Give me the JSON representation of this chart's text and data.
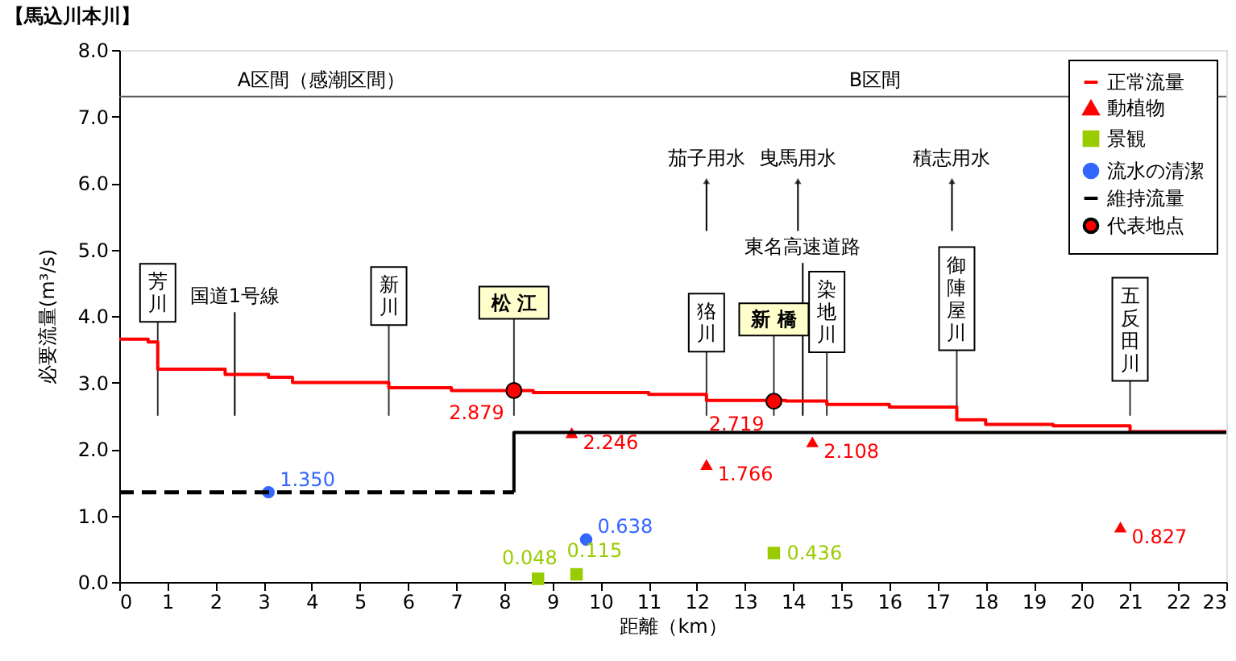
{
  "chart_data": {
    "type": "scatter",
    "title": "【馬込川本川】",
    "xlabel": "距離（km）",
    "ylabel": "必要流量(m³/s)",
    "xlim": [
      0,
      23
    ],
    "xticks": [
      0,
      1,
      2,
      3,
      4,
      5,
      6,
      7,
      8,
      9,
      10,
      11,
      12,
      13,
      14,
      15,
      16,
      17,
      18,
      19,
      20,
      21,
      22,
      23
    ],
    "ylim": [
      0,
      8
    ],
    "yticks": [
      {
        "value": 0,
        "label": "0.0"
      },
      {
        "value": 1,
        "label": "1.0"
      },
      {
        "value": 2,
        "label": "2.0"
      },
      {
        "value": 3,
        "label": "3.0"
      },
      {
        "value": 4,
        "label": "4.0"
      },
      {
        "value": 5,
        "label": "5.0"
      },
      {
        "value": 6,
        "label": "6.0"
      },
      {
        "value": 7,
        "label": "7.0"
      },
      {
        "value": 8,
        "label": "8.0"
      }
    ],
    "legend": "top right",
    "series": [
      {
        "name": "正常流量",
        "type": "step",
        "line_style": "solid",
        "color": "#ff0000",
        "x": [
          0,
          0.6,
          0.8,
          2.2,
          3.1,
          3.6,
          5.6,
          6.9,
          8.6,
          11,
          12.2,
          13.85,
          14.7,
          16,
          17.4,
          18,
          19.4,
          21,
          23
        ],
        "values": [
          3.65,
          3.61,
          3.2,
          3.12,
          3.08,
          3.0,
          2.92,
          2.88,
          2.85,
          2.82,
          2.73,
          2.72,
          2.67,
          2.63,
          2.44,
          2.37,
          2.35,
          2.26,
          2.26
        ]
      },
      {
        "name": "動植物",
        "marker": "triangle",
        "color": "#ff0000",
        "x": [
          9.4,
          12.2,
          14.4,
          20.8
        ],
        "values": [
          2.246,
          1.766,
          2.108,
          0.827
        ],
        "value_labels": [
          "2.246",
          "1.766",
          "2.108",
          "0.827"
        ]
      },
      {
        "name": "景観",
        "marker": "square",
        "color": "#99cc00",
        "x": [
          8.7,
          9.5,
          13.6
        ],
        "values": [
          0.048,
          0.115,
          0.436
        ],
        "value_labels": [
          "0.048",
          "0.115",
          "0.436"
        ]
      },
      {
        "name": "流水の清潔",
        "marker": "circle",
        "color": "#3366ff",
        "x": [
          3.1,
          9.7
        ],
        "values": [
          1.35,
          0.638
        ],
        "value_labels": [
          "1.350",
          "0.638"
        ]
      },
      {
        "name": "維持流量",
        "type": "line",
        "color": "#000000",
        "line_style": "solid",
        "x": [
          8.2,
          8.2,
          23
        ],
        "values": [
          1.35,
          2.25,
          2.25
        ]
      },
      {
        "name": "代表地点",
        "marker": "circle",
        "color": "#ff0000",
        "x": [
          8.2,
          13.6
        ],
        "values": [
          2.879,
          2.719
        ],
        "value_labels": [
          "2.879",
          "2.719"
        ]
      },
      {
        "type": "line",
        "color": "#000000",
        "line_style": "dashed",
        "x": [
          0,
          8.2
        ],
        "values": [
          1.35,
          1.35
        ]
      }
    ],
    "ref_lines": [
      {
        "axis": "y",
        "value": 7.3,
        "color": "#555555"
      }
    ],
    "annotations": [
      "A区間（感潮区間）",
      "B区間",
      "茄子用水",
      "曳馬用水",
      "積志用水",
      "東名高速道路",
      "国道1号線",
      "芳川",
      "新川",
      "松 江",
      "狢川",
      "新 橋",
      "染地川",
      {
        "text": "御陣屋川",
        "x": 17.4,
        "y": 2.63
      },
      "五反田川"
    ]
  }
}
